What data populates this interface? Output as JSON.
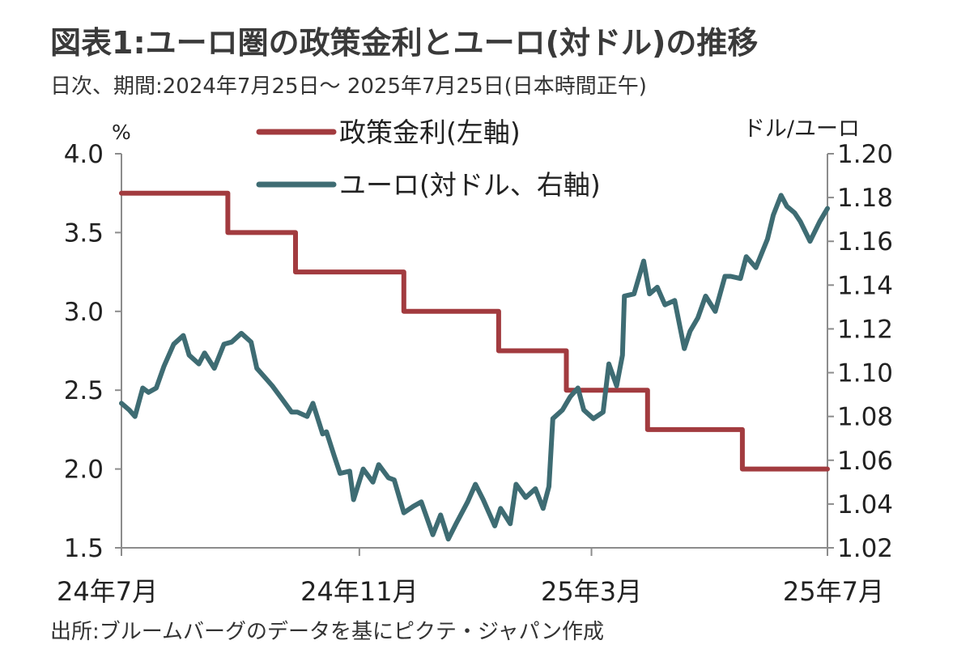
{
  "header": {
    "title": "図表1:ユーロ圏の政策金利とユーロ(対ドル)の推移",
    "subtitle": "日次、期間:2024年7月25日～ 2025年7月25日(日本時間正午)"
  },
  "footer": {
    "source": "出所:ブルームバーグのデータを基にピクテ・ジャパン作成"
  },
  "colors": {
    "policy_rate": "#a23b3f",
    "eur_usd": "#3e6c73",
    "axis": "#8c8c8c"
  },
  "chart_data": {
    "type": "line",
    "left_axis": {
      "unit": "%",
      "ylim": [
        1.5,
        4.0
      ],
      "ticks": [
        "1.5",
        "2.0",
        "2.5",
        "3.0",
        "3.5",
        "4.0"
      ]
    },
    "right_axis": {
      "unit": "ドル/ユーロ",
      "ylim": [
        1.02,
        1.2
      ],
      "ticks": [
        "1.02",
        "1.04",
        "1.06",
        "1.08",
        "1.10",
        "1.12",
        "1.14",
        "1.16",
        "1.18",
        "1.20"
      ]
    },
    "x_axis": {
      "range": [
        "2024-07-25",
        "2025-07-25"
      ],
      "tick_labels": [
        "24年7月",
        "24年11月",
        "25年3月",
        "25年7月"
      ],
      "tick_dates": [
        "2024-07-25",
        "2024-11-25",
        "2025-03-25",
        "2025-07-25"
      ]
    },
    "legend": {
      "placement": "top-center",
      "entries": [
        "政策金利(左軸)",
        "ユーロ(対ドル、右軸)"
      ]
    },
    "grid": false,
    "series": [
      {
        "name": "政策金利(左軸)",
        "axis": "left",
        "style": "step",
        "points": [
          [
            "2024-07-25",
            3.75
          ],
          [
            "2024-09-18",
            3.5
          ],
          [
            "2024-10-23",
            3.25
          ],
          [
            "2024-12-18",
            3.0
          ],
          [
            "2025-02-05",
            2.75
          ],
          [
            "2025-03-12",
            2.5
          ],
          [
            "2025-04-23",
            2.25
          ],
          [
            "2025-06-11",
            2.0
          ],
          [
            "2025-07-25",
            2.0
          ]
        ]
      },
      {
        "name": "ユーロ(対ドル、右軸)",
        "axis": "right",
        "style": "line",
        "points": [
          [
            "2024-07-25",
            1.086
          ],
          [
            "2024-07-29",
            1.083
          ],
          [
            "2024-08-01",
            1.08
          ],
          [
            "2024-08-05",
            1.093
          ],
          [
            "2024-08-08",
            1.091
          ],
          [
            "2024-08-12",
            1.093
          ],
          [
            "2024-08-16",
            1.103
          ],
          [
            "2024-08-21",
            1.113
          ],
          [
            "2024-08-26",
            1.117
          ],
          [
            "2024-08-29",
            1.108
          ],
          [
            "2024-09-03",
            1.104
          ],
          [
            "2024-09-06",
            1.109
          ],
          [
            "2024-09-11",
            1.102
          ],
          [
            "2024-09-16",
            1.113
          ],
          [
            "2024-09-20",
            1.114
          ],
          [
            "2024-09-25",
            1.118
          ],
          [
            "2024-09-30",
            1.114
          ],
          [
            "2024-10-03",
            1.102
          ],
          [
            "2024-10-08",
            1.097
          ],
          [
            "2024-10-11",
            1.094
          ],
          [
            "2024-10-16",
            1.088
          ],
          [
            "2024-10-21",
            1.082
          ],
          [
            "2024-10-24",
            1.082
          ],
          [
            "2024-10-29",
            1.08
          ],
          [
            "2024-11-01",
            1.086
          ],
          [
            "2024-11-06",
            1.072
          ],
          [
            "2024-11-08",
            1.073
          ],
          [
            "2024-11-12",
            1.062
          ],
          [
            "2024-11-15",
            1.054
          ],
          [
            "2024-11-20",
            1.055
          ],
          [
            "2024-11-22",
            1.042
          ],
          [
            "2024-11-27",
            1.056
          ],
          [
            "2024-12-02",
            1.05
          ],
          [
            "2024-12-05",
            1.058
          ],
          [
            "2024-12-10",
            1.052
          ],
          [
            "2024-12-13",
            1.051
          ],
          [
            "2024-12-18",
            1.036
          ],
          [
            "2024-12-23",
            1.039
          ],
          [
            "2024-12-27",
            1.041
          ],
          [
            "2025-01-02",
            1.026
          ],
          [
            "2025-01-06",
            1.035
          ],
          [
            "2025-01-10",
            1.024
          ],
          [
            "2025-01-14",
            1.031
          ],
          [
            "2025-01-20",
            1.041
          ],
          [
            "2025-01-24",
            1.049
          ],
          [
            "2025-01-28",
            1.042
          ],
          [
            "2025-02-03",
            1.03
          ],
          [
            "2025-02-06",
            1.038
          ],
          [
            "2025-02-11",
            1.031
          ],
          [
            "2025-02-14",
            1.049
          ],
          [
            "2025-02-19",
            1.043
          ],
          [
            "2025-02-24",
            1.047
          ],
          [
            "2025-02-28",
            1.038
          ],
          [
            "2025-03-03",
            1.048
          ],
          [
            "2025-03-05",
            1.079
          ],
          [
            "2025-03-10",
            1.083
          ],
          [
            "2025-03-14",
            1.089
          ],
          [
            "2025-03-18",
            1.093
          ],
          [
            "2025-03-21",
            1.083
          ],
          [
            "2025-03-26",
            1.079
          ],
          [
            "2025-03-31",
            1.082
          ],
          [
            "2025-04-03",
            1.104
          ],
          [
            "2025-04-07",
            1.094
          ],
          [
            "2025-04-10",
            1.108
          ],
          [
            "2025-04-11",
            1.135
          ],
          [
            "2025-04-16",
            1.136
          ],
          [
            "2025-04-21",
            1.151
          ],
          [
            "2025-04-24",
            1.136
          ],
          [
            "2025-04-28",
            1.139
          ],
          [
            "2025-05-02",
            1.131
          ],
          [
            "2025-05-07",
            1.133
          ],
          [
            "2025-05-12",
            1.111
          ],
          [
            "2025-05-15",
            1.119
          ],
          [
            "2025-05-19",
            1.125
          ],
          [
            "2025-05-23",
            1.135
          ],
          [
            "2025-05-28",
            1.128
          ],
          [
            "2025-06-02",
            1.144
          ],
          [
            "2025-06-05",
            1.144
          ],
          [
            "2025-06-10",
            1.143
          ],
          [
            "2025-06-13",
            1.153
          ],
          [
            "2025-06-18",
            1.148
          ],
          [
            "2025-06-24",
            1.161
          ],
          [
            "2025-06-27",
            1.172
          ],
          [
            "2025-07-01",
            1.181
          ],
          [
            "2025-07-04",
            1.176
          ],
          [
            "2025-07-08",
            1.173
          ],
          [
            "2025-07-11",
            1.169
          ],
          [
            "2025-07-16",
            1.16
          ],
          [
            "2025-07-21",
            1.169
          ],
          [
            "2025-07-25",
            1.175
          ]
        ]
      }
    ]
  }
}
